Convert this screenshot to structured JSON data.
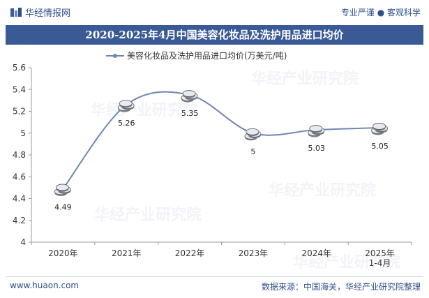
{
  "header": {
    "brand": "华经情报网",
    "slogan": "专业严谨 ● 客观科学"
  },
  "footer": {
    "site": "www.huaon.com",
    "source": "数据来源：中国海关，华经产业研究院整理"
  },
  "watermark": "华经产业研究院",
  "colors": {
    "line": "#6e86b5",
    "title_bg": "#3a5a96",
    "brand": "#2f4f8a"
  },
  "chart_data": {
    "type": "line",
    "title": "2020-2025年4月中国美容化妆品及洗护用品进口均价",
    "categories": [
      "2020年",
      "2021年",
      "2022年",
      "2023年",
      "2024年",
      "2025年\n1-4月"
    ],
    "series": [
      {
        "name": "美容化妆品及洗护用品进口均价(万美元/吨)",
        "values": [
          4.49,
          5.26,
          5.35,
          5,
          5.03,
          5.05
        ]
      }
    ],
    "data_labels": [
      "4.49",
      "5.26",
      "5.35",
      "5",
      "5.03",
      "5.05"
    ],
    "yticks": [
      "4",
      "4.2",
      "4.4",
      "4.6",
      "4.8",
      "5",
      "5.2",
      "5.4",
      "5.6"
    ],
    "ylim": [
      4,
      5.6
    ],
    "xlabel": "",
    "ylabel": "",
    "grid": false,
    "legend": "top"
  }
}
